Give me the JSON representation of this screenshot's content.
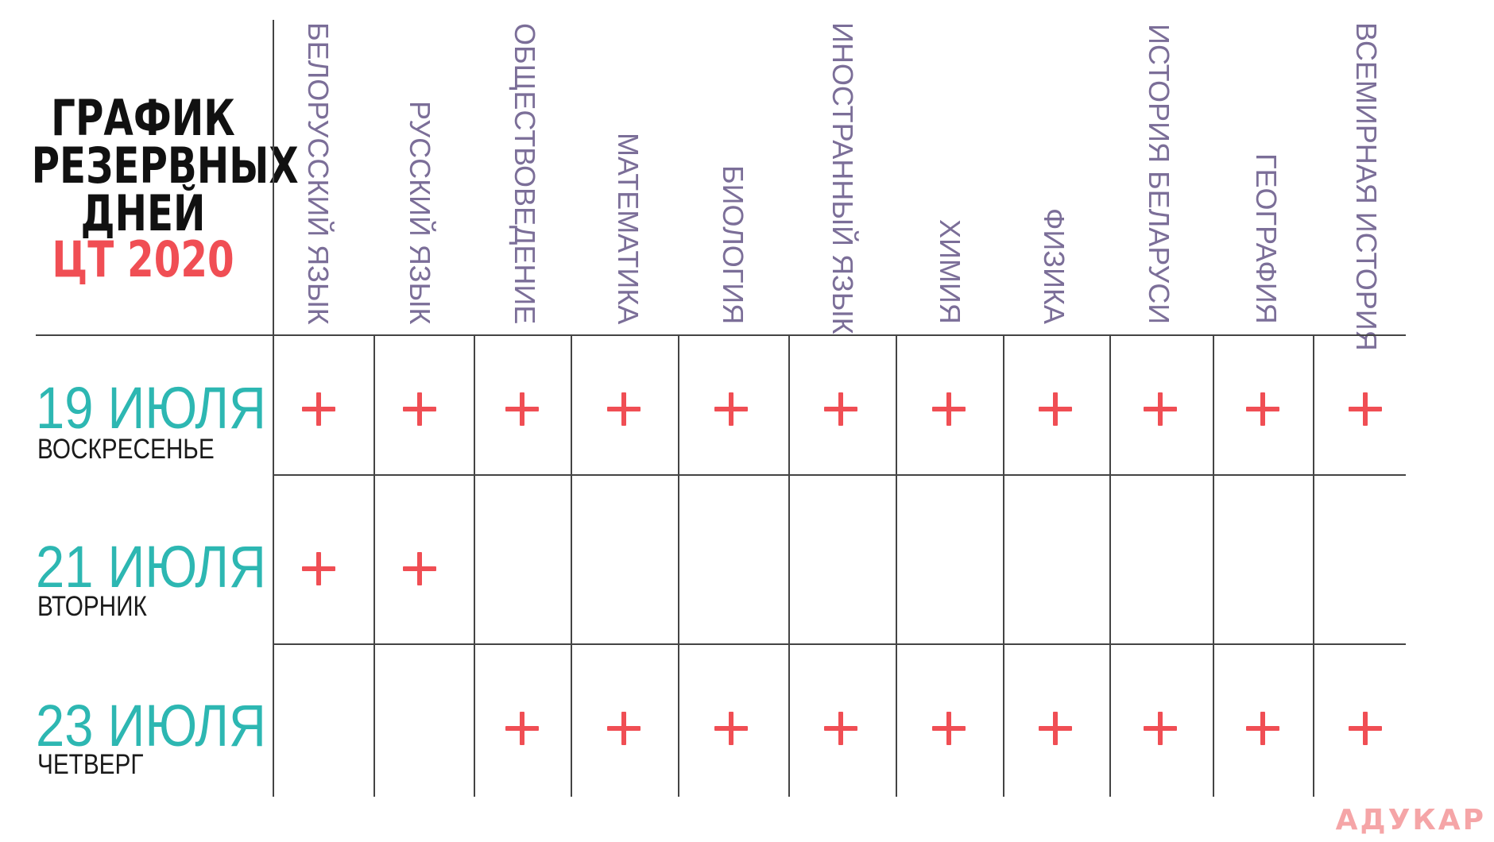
{
  "title": {
    "line1": "ГРАФИК",
    "line2": "РЕЗЕРВНЫХ",
    "line3": "ДНЕЙ",
    "line4": "ЦТ 2020"
  },
  "subjects": [
    "БЕЛОРУССКИЙ ЯЗЫК",
    "РУССКИЙ ЯЗЫК",
    "ОБЩЕСТВОВЕДЕНИЕ",
    "МАТЕМАТИКА",
    "БИОЛОГИЯ",
    "ИНОСТРАННЫЙ ЯЗЫК",
    "ХИМИЯ",
    "ФИЗИКА",
    "ИСТОРИЯ БЕЛАРУСИ",
    "ГЕОГРАФИЯ",
    "ВСЕМИРНАЯ ИСТОРИЯ"
  ],
  "rows": [
    {
      "date": "19 ИЮЛЯ",
      "weekday": "ВОСКРЕСЕНЬЕ",
      "marks": [
        1,
        1,
        1,
        1,
        1,
        1,
        1,
        1,
        1,
        1,
        1
      ]
    },
    {
      "date": "21 ИЮЛЯ",
      "weekday": "ВТОРНИК",
      "marks": [
        1,
        1,
        0,
        0,
        0,
        0,
        0,
        0,
        0,
        0,
        0
      ]
    },
    {
      "date": "23 ИЮЛЯ",
      "weekday": "ЧЕТВЕРГ",
      "marks": [
        0,
        0,
        1,
        1,
        1,
        1,
        1,
        1,
        1,
        1,
        1
      ]
    }
  ],
  "mark_symbol": "+",
  "colors": {
    "accent_red": "#f04e54",
    "teal": "#2db7b2",
    "subject_purple": "#7b6e98",
    "brand_pink": "#f5a5a7"
  },
  "brand": "АДУКАР"
}
